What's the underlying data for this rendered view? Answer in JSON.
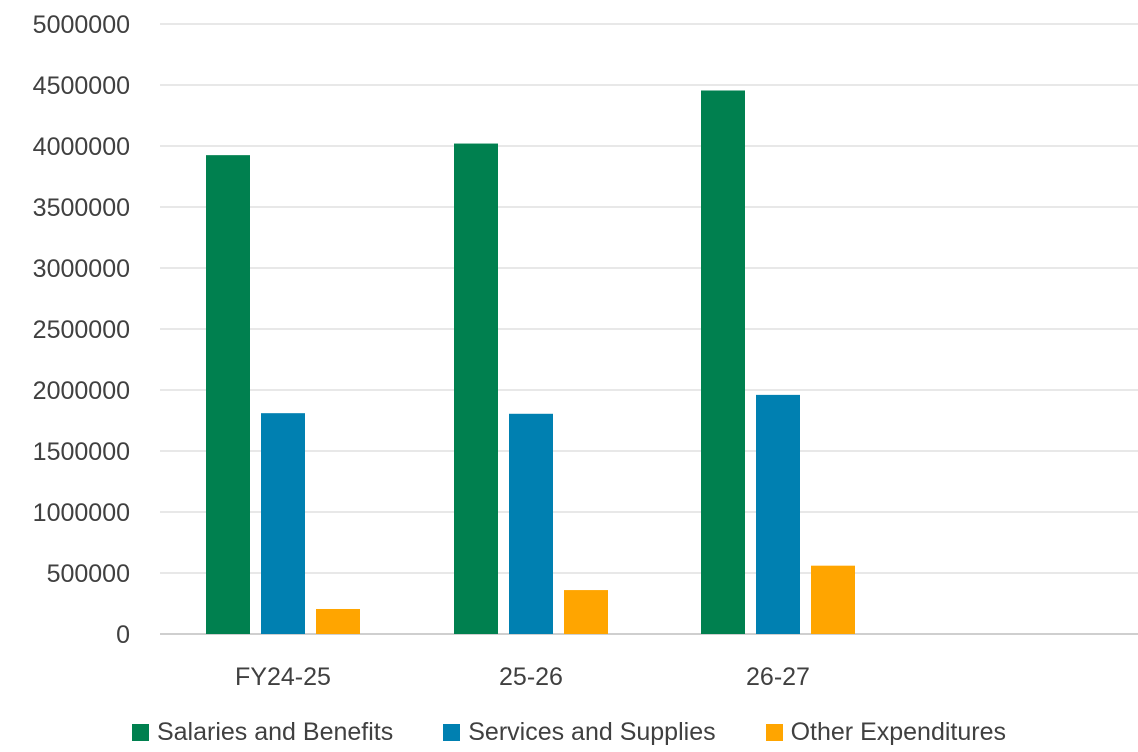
{
  "chart_data": {
    "type": "bar",
    "title": "",
    "xlabel": "",
    "ylabel": "",
    "categories": [
      "FY24-25",
      "25-26",
      "26-27"
    ],
    "ylim": [
      0,
      5000000
    ],
    "yticks": [
      "0",
      "500000",
      "1000000",
      "1500000",
      "2000000",
      "2500000",
      "3000000",
      "3500000",
      "4000000",
      "4500000",
      "5000000"
    ],
    "grid": true,
    "legend_position": "bottom",
    "series": [
      {
        "name": "Salaries and Benefits",
        "color": "#00804F",
        "values": [
          3925000,
          4020000,
          4455000
        ]
      },
      {
        "name": "Services and Supplies",
        "color": "#0080B1",
        "values": [
          1810000,
          1805000,
          1960000
        ]
      },
      {
        "name": "Other Expenditures",
        "color": "#FFA500",
        "values": [
          205000,
          360000,
          560000
        ]
      }
    ]
  }
}
